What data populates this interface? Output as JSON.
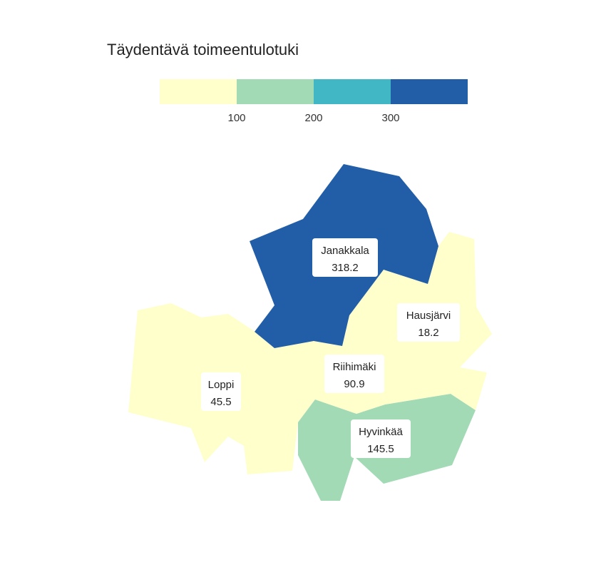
{
  "title": "Täydentävä toimeentulotuki",
  "legend": {
    "bins": [
      {
        "color": "#ffffcc"
      },
      {
        "color": "#a1dab4"
      },
      {
        "color": "#41b6c4"
      },
      {
        "color": "#225ea8"
      }
    ],
    "ticks": [
      "100",
      "200",
      "300"
    ]
  },
  "regions": [
    {
      "name": "Janakkala",
      "value": "318.2",
      "color": "#225ea8"
    },
    {
      "name": "Hausjärvi",
      "value": "18.2",
      "color": "#ffffcc"
    },
    {
      "name": "Riihimäki",
      "value": "90.9",
      "color": "#ffffcc"
    },
    {
      "name": "Loppi",
      "value": "45.5",
      "color": "#ffffcc"
    },
    {
      "name": "Hyvinkää",
      "value": "145.5",
      "color": "#a1dab4"
    }
  ]
}
